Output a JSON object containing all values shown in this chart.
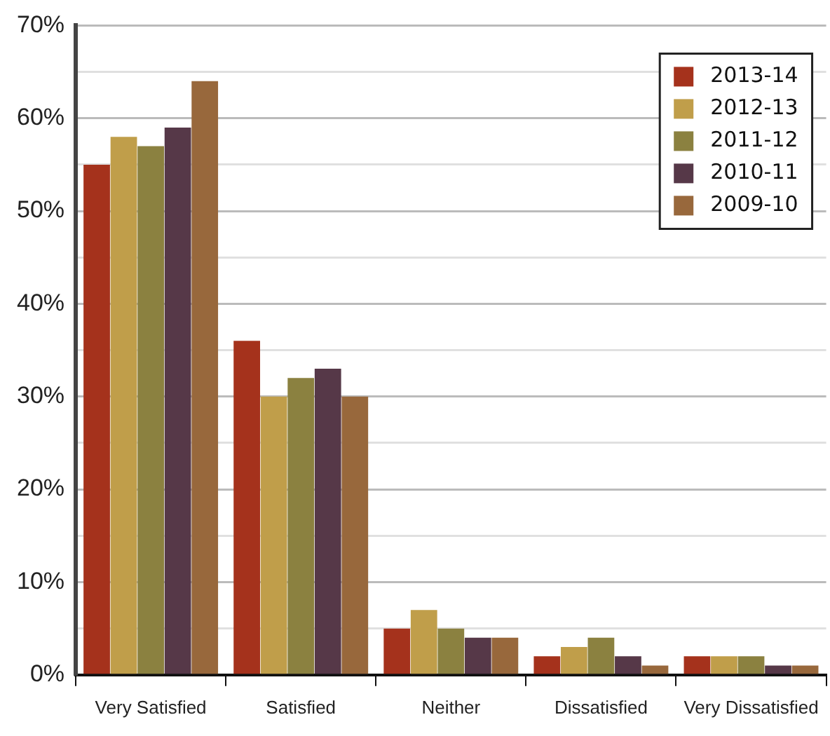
{
  "chart_data": {
    "type": "bar",
    "categories": [
      "Very Satisfied",
      "Satisfied",
      "Neither",
      "Dissatisfied",
      "Very Dissatisfied"
    ],
    "series": [
      {
        "name": "2013-14",
        "color": "#a5321c",
        "values": [
          55,
          36,
          5,
          2,
          2
        ]
      },
      {
        "name": "2012-13",
        "color": "#c09e4a",
        "values": [
          58,
          30,
          7,
          3,
          2
        ]
      },
      {
        "name": "2011-12",
        "color": "#8b8140",
        "values": [
          57,
          32,
          5,
          4,
          2
        ]
      },
      {
        "name": "2010-11",
        "color": "#563848",
        "values": [
          59,
          33,
          4,
          2,
          1
        ]
      },
      {
        "name": "2009-10",
        "color": "#98683c",
        "values": [
          64,
          30,
          4,
          1,
          1
        ]
      }
    ],
    "ylim": [
      0,
      70
    ],
    "yticks": [
      {
        "value": 0,
        "label": "0%"
      },
      {
        "value": 5,
        "label": null
      },
      {
        "value": 10,
        "label": "10%"
      },
      {
        "value": 15,
        "label": null
      },
      {
        "value": 20,
        "label": "20%"
      },
      {
        "value": 25,
        "label": null
      },
      {
        "value": 30,
        "label": "30%"
      },
      {
        "value": 35,
        "label": null
      },
      {
        "value": 40,
        "label": "40%"
      },
      {
        "value": 45,
        "label": null
      },
      {
        "value": 50,
        "label": "50%"
      },
      {
        "value": 55,
        "label": null
      },
      {
        "value": 60,
        "label": "60%"
      },
      {
        "value": 65,
        "label": null
      },
      {
        "value": 70,
        "label": "70%"
      }
    ],
    "grid": "y",
    "legend": "top right"
  }
}
